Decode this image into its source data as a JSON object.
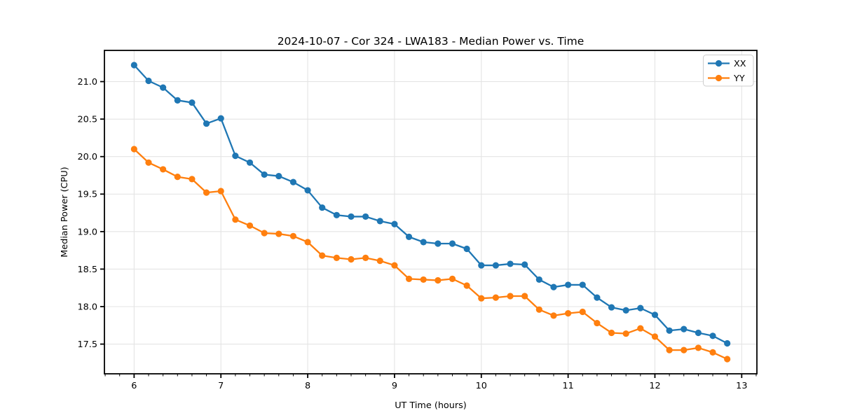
{
  "chart_data": {
    "type": "line",
    "title": "2024-10-07 - Cor 324 - LWA183 - Median Power vs. Time",
    "xlabel": "UT Time (hours)",
    "ylabel": "Median Power (CPU)",
    "xlim": [
      5.658,
      13.175
    ],
    "ylim": [
      17.104,
      21.416
    ],
    "grid": true,
    "legend_position": "upper right",
    "xticks": [
      6,
      7,
      8,
      9,
      10,
      11,
      12,
      13
    ],
    "xticklabels": [
      "6",
      "7",
      "8",
      "9",
      "10",
      "11",
      "12",
      "13"
    ],
    "yticks": [
      17.5,
      18.0,
      18.5,
      19.0,
      19.5,
      20.0,
      20.5,
      21.0
    ],
    "yticklabels": [
      "17.5",
      "18.0",
      "18.5",
      "19.0",
      "19.5",
      "20.0",
      "20.5",
      "21.0"
    ],
    "minor_tick_step_x": 0.166667,
    "x": [
      6.0,
      6.1667,
      6.3333,
      6.5,
      6.6667,
      6.8333,
      7.0,
      7.1667,
      7.3333,
      7.5,
      7.6667,
      7.8333,
      8.0,
      8.1667,
      8.3333,
      8.5,
      8.6667,
      8.8333,
      9.0,
      9.1667,
      9.3333,
      9.5,
      9.6667,
      9.8333,
      10.0,
      10.1667,
      10.3333,
      10.5,
      10.6667,
      10.8333,
      11.0,
      11.1667,
      11.3333,
      11.5,
      11.6667,
      11.8333,
      12.0,
      12.1667,
      12.3333,
      12.5,
      12.6667,
      12.8333
    ],
    "series": [
      {
        "name": "XX",
        "color": "#1f77b4",
        "values": [
          21.22,
          21.01,
          20.92,
          20.75,
          20.72,
          20.44,
          20.51,
          20.01,
          19.92,
          19.76,
          19.74,
          19.66,
          19.55,
          19.32,
          19.22,
          19.2,
          19.2,
          19.14,
          19.1,
          18.93,
          18.86,
          18.84,
          18.84,
          18.77,
          18.55,
          18.55,
          18.57,
          18.56,
          18.36,
          18.26,
          18.29,
          18.29,
          18.12,
          17.99,
          17.95,
          17.98,
          17.89,
          17.68,
          17.7,
          17.65,
          17.61,
          17.51
        ]
      },
      {
        "name": "YY",
        "color": "#ff7f0e",
        "values": [
          20.1,
          19.92,
          19.83,
          19.73,
          19.7,
          19.52,
          19.54,
          19.16,
          19.08,
          18.98,
          18.97,
          18.94,
          18.86,
          18.68,
          18.65,
          18.63,
          18.65,
          18.61,
          18.55,
          18.37,
          18.36,
          18.35,
          18.37,
          18.28,
          18.11,
          18.12,
          18.14,
          18.14,
          17.96,
          17.88,
          17.91,
          17.93,
          17.78,
          17.65,
          17.64,
          17.71,
          17.6,
          17.42,
          17.42,
          17.45,
          17.39,
          17.3
        ]
      }
    ],
    "colors": {
      "grid": "#e4e4e4",
      "spine": "#000000",
      "background": "#ffffff",
      "legend_border": "#cccccc"
    }
  }
}
